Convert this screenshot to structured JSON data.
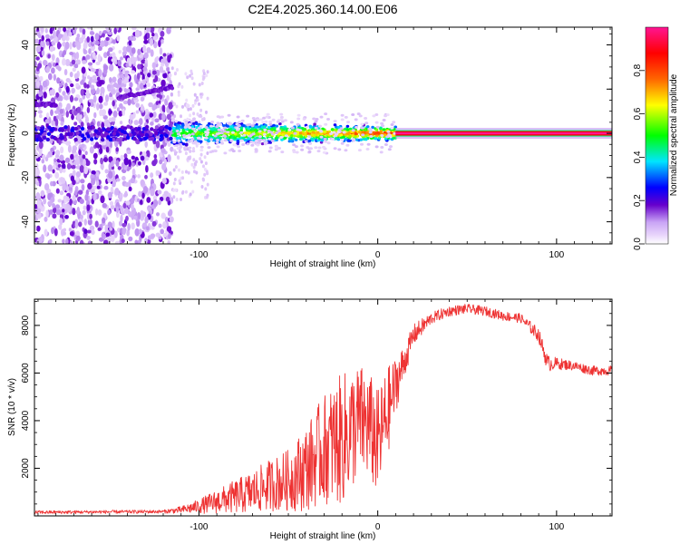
{
  "title": "C2E4.2025.360.14.00.E06",
  "chart_data": [
    {
      "type": "heatmap",
      "name": "spectrogram",
      "xlabel": "Height of straight line (km)",
      "ylabel": "Frequency (Hz)",
      "xlim": [
        -192,
        131
      ],
      "ylim": [
        -50,
        48
      ],
      "xticks": [
        -100,
        0,
        100
      ],
      "yticks": [
        -40,
        -20,
        0,
        20,
        40
      ],
      "colorbar": {
        "label": "Normalized spectral amplitude",
        "range": [
          0,
          1
        ],
        "ticks": [
          "0.0",
          "0.2",
          "0.4",
          "0.6",
          "0.8"
        ],
        "colors": [
          "#ffffff",
          "#c9a4f5",
          "#6600cc",
          "#0000ff",
          "#00e5ff",
          "#00ff00",
          "#ffff00",
          "#ff6600",
          "#ff0000",
          "#ff1493"
        ]
      },
      "features": [
        {
          "label": "diffuse noise",
          "x_range": [
            -192,
            -115
          ],
          "f_range": [
            -50,
            48
          ],
          "amplitude": 0.05
        },
        {
          "label": "secondary tone",
          "x_range": [
            -145,
            -115
          ],
          "f_start": 16,
          "f_end": 21,
          "amplitude": 0.15
        },
        {
          "label": "secondary tone",
          "x_range": [
            -192,
            -180
          ],
          "f_start": 13,
          "f_end": 13,
          "amplitude": 0.15
        },
        {
          "label": "carrier band (noisy)",
          "x_range": [
            -192,
            -115
          ],
          "f_center": 0,
          "f_width": 3,
          "amplitude": 0.2
        },
        {
          "label": "carrier band (broadened)",
          "x_range": [
            -115,
            10
          ],
          "f_center": 0,
          "f_width": 6,
          "amplitude": 0.55
        },
        {
          "label": "carrier line (clean)",
          "x_range": [
            10,
            131
          ],
          "f_center": 0,
          "f_width": 1,
          "amplitude": 1.0
        }
      ]
    },
    {
      "type": "line",
      "name": "snr",
      "xlabel": "Height of straight line (km)",
      "ylabel": "SNR (10 * v/v)",
      "xlim": [
        -192,
        131
      ],
      "ylim": [
        0,
        9100
      ],
      "xticks": [
        -100,
        0,
        100
      ],
      "yticks": [
        2000,
        4000,
        6000,
        8000
      ],
      "color": "#ee3333",
      "profile": {
        "x": [
          -192,
          -120,
          -110,
          -100,
          -90,
          -80,
          -70,
          -60,
          -50,
          -40,
          -30,
          -20,
          -15,
          -10,
          -5,
          0,
          5,
          10,
          15,
          20,
          30,
          40,
          50,
          60,
          70,
          80,
          90,
          95,
          100,
          110,
          120,
          131
        ],
        "mean": [
          150,
          180,
          250,
          400,
          600,
          800,
          1000,
          1300,
          1500,
          2000,
          2800,
          3200,
          3600,
          4000,
          3800,
          3000,
          4200,
          5500,
          6500,
          7600,
          8300,
          8600,
          8700,
          8600,
          8400,
          8300,
          7600,
          6400,
          6400,
          6300,
          6100,
          6100
        ],
        "noise": [
          70,
          70,
          150,
          300,
          500,
          700,
          900,
          1100,
          1300,
          1800,
          2300,
          2800,
          2600,
          2400,
          2300,
          2300,
          2000,
          1200,
          700,
          450,
          250,
          220,
          200,
          200,
          200,
          200,
          300,
          350,
          250,
          200,
          200,
          200
        ]
      }
    }
  ]
}
